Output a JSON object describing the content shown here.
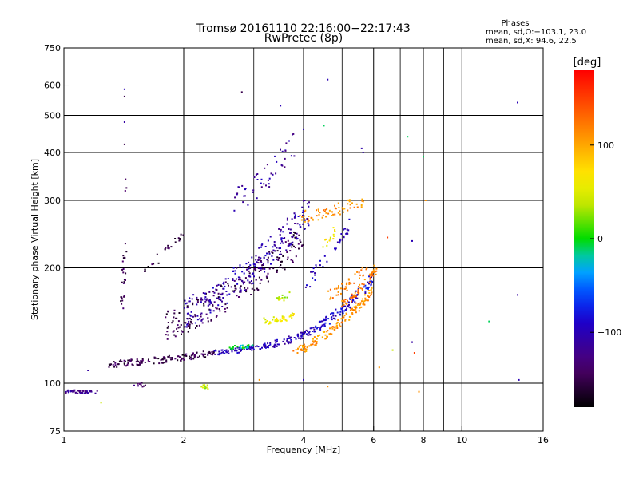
{
  "chart_data": {
    "type": "scatter",
    "title": "Tromsø 20161110 22:16:00−22:17:43",
    "subtitle": "RwPretec (8p)",
    "xlabel": "Frequency [MHz]",
    "ylabel": "Stationary phase Virtual Height [km]",
    "x_scale": "log",
    "y_scale": "log",
    "xlim": [
      1,
      16
    ],
    "ylim": [
      75,
      750
    ],
    "x_ticks": [
      1,
      2,
      4,
      6,
      8,
      10,
      16
    ],
    "x_tick_labels": [
      "1",
      "2",
      "4",
      "6",
      "8",
      "10",
      "16"
    ],
    "y_ticks": [
      75,
      100,
      200,
      300,
      400,
      500,
      600,
      750
    ],
    "y_tick_labels": [
      "75",
      "100",
      "200",
      "300",
      "400",
      "500",
      "600",
      "750"
    ],
    "grid": true,
    "phases_box": {
      "title": "Phases",
      "line1": "mean, sd,O:−103.1, 23.0",
      "line2": "mean, sd,X:  94.6, 22.5"
    },
    "colorbar": {
      "label": "[deg]",
      "range": [
        -180,
        180
      ],
      "ticks": [
        100,
        0,
        -100
      ],
      "tick_labels": [
        "100",
        "0",
        "−100"
      ]
    },
    "traces": [
      {
        "f": [
          1.0,
          1.22
        ],
        "h": [
          95,
          95
        ],
        "phase": -120,
        "spread": 0.02,
        "n": 45
      },
      {
        "f": [
          1.5,
          1.62
        ],
        "h": [
          99,
          99
        ],
        "phase": -140,
        "spread": 0.03,
        "n": 10
      },
      {
        "f": [
          2.2,
          2.3
        ],
        "h": [
          98,
          98
        ],
        "phase": 40,
        "spread": 0.03,
        "n": 12
      },
      {
        "f": [
          1.3,
          2.4
        ],
        "h": [
          112,
          120
        ],
        "phase": -150,
        "spread": 0.04,
        "n": 140
      },
      {
        "f": [
          2.4,
          3.3
        ],
        "h": [
          120,
          126
        ],
        "phase": -100,
        "spread": 0.03,
        "n": 80
      },
      {
        "f": [
          2.6,
          3.0
        ],
        "h": [
          124,
          125
        ],
        "phase": -10,
        "spread": 0.02,
        "n": 25
      },
      {
        "f": [
          3.3,
          4.3
        ],
        "h": [
          126,
          138
        ],
        "phase": -100,
        "spread": 0.04,
        "n": 70
      },
      {
        "f": [
          4.3,
          6.0
        ],
        "h": [
          140,
          190
        ],
        "phase": -90,
        "spread": 0.06,
        "n": 110
      },
      {
        "f": [
          3.8,
          6.0
        ],
        "h": [
          120,
          175
        ],
        "phase": 110,
        "spread": 0.05,
        "n": 140
      },
      {
        "f": [
          5.0,
          6.1
        ],
        "h": [
          160,
          200
        ],
        "phase": 120,
        "spread": 0.05,
        "n": 60
      },
      {
        "f": [
          3.2,
          3.8
        ],
        "h": [
          145,
          150
        ],
        "phase": 60,
        "spread": 0.04,
        "n": 35
      },
      {
        "f": [
          3.4,
          3.7
        ],
        "h": [
          165,
          170
        ],
        "phase": 40,
        "spread": 0.04,
        "n": 15
      },
      {
        "f": [
          4.6,
          5.8
        ],
        "h": [
          170,
          200
        ],
        "phase": 120,
        "spread": 0.06,
        "n": 40
      },
      {
        "f": [
          3.9,
          5.7
        ],
        "h": [
          270,
          300
        ],
        "phase": 110,
        "spread": 0.08,
        "n": 70
      },
      {
        "f": [
          4.5,
          4.8
        ],
        "h": [
          230,
          250
        ],
        "phase": 60,
        "spread": 0.04,
        "n": 15
      },
      {
        "f": [
          1.8,
          4.0
        ],
        "h": [
          140,
          240
        ],
        "phase": -150,
        "spread": 0.18,
        "n": 220
      },
      {
        "f": [
          2.0,
          4.2
        ],
        "h": [
          150,
          290
        ],
        "phase": -105,
        "spread": 0.18,
        "n": 230
      },
      {
        "f": [
          2.7,
          3.8
        ],
        "h": [
          300,
          420
        ],
        "phase": -110,
        "spread": 0.15,
        "n": 50
      },
      {
        "f": [
          1.4,
          1.44
        ],
        "h": [
          160,
          330
        ],
        "phase": -150,
        "spread": 0.1,
        "n": 30
      },
      {
        "f": [
          1.6,
          2.0
        ],
        "h": [
          200,
          250
        ],
        "phase": -155,
        "spread": 0.07,
        "n": 25
      },
      {
        "f": [
          4.0,
          5.2
        ],
        "h": [
          180,
          260
        ],
        "phase": -100,
        "spread": 0.1,
        "n": 40
      }
    ],
    "points": [
      {
        "f": 1.42,
        "h": 585,
        "phase": -100
      },
      {
        "f": 1.42,
        "h": 560,
        "phase": -150
      },
      {
        "f": 1.42,
        "h": 480,
        "phase": -110
      },
      {
        "f": 1.42,
        "h": 420,
        "phase": -150
      },
      {
        "f": 2.8,
        "h": 575,
        "phase": -150
      },
      {
        "f": 3.5,
        "h": 530,
        "phase": -100
      },
      {
        "f": 4.6,
        "h": 620,
        "phase": -100
      },
      {
        "f": 4.0,
        "h": 460,
        "phase": -100
      },
      {
        "f": 4.5,
        "h": 470,
        "phase": -10
      },
      {
        "f": 5.6,
        "h": 410,
        "phase": -105
      },
      {
        "f": 5.65,
        "h": 400,
        "phase": -105
      },
      {
        "f": 7.3,
        "h": 440,
        "phase": -10
      },
      {
        "f": 8.0,
        "h": 390,
        "phase": -10
      },
      {
        "f": 6.5,
        "h": 240,
        "phase": 150
      },
      {
        "f": 7.5,
        "h": 235,
        "phase": -100
      },
      {
        "f": 8.1,
        "h": 300,
        "phase": 110
      },
      {
        "f": 6.7,
        "h": 122,
        "phase": 40
      },
      {
        "f": 7.5,
        "h": 128,
        "phase": -110
      },
      {
        "f": 7.6,
        "h": 120,
        "phase": 150
      },
      {
        "f": 6.2,
        "h": 110,
        "phase": 110
      },
      {
        "f": 13.8,
        "h": 540,
        "phase": -100
      },
      {
        "f": 13.8,
        "h": 170,
        "phase": -110
      },
      {
        "f": 13.9,
        "h": 102,
        "phase": -100
      },
      {
        "f": 11.7,
        "h": 145,
        "phase": -10
      },
      {
        "f": 7.8,
        "h": 95,
        "phase": 110
      },
      {
        "f": 4.6,
        "h": 98,
        "phase": 110
      },
      {
        "f": 4.0,
        "h": 102,
        "phase": -100
      },
      {
        "f": 1.24,
        "h": 89,
        "phase": 40
      },
      {
        "f": 3.1,
        "h": 102,
        "phase": 110
      },
      {
        "f": 1.15,
        "h": 108,
        "phase": -110
      }
    ]
  }
}
